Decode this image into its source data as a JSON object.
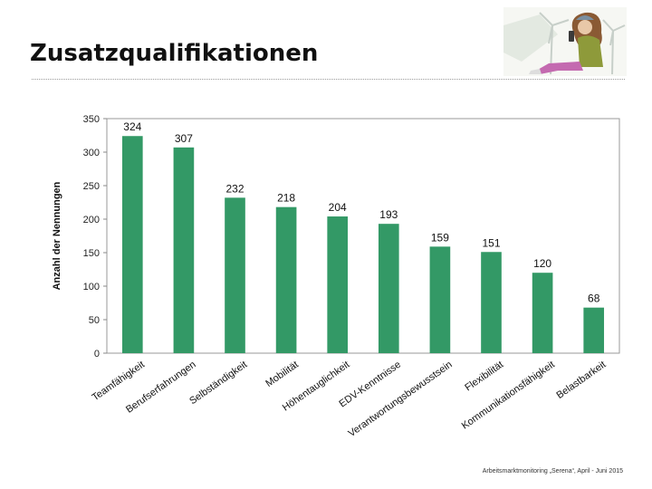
{
  "slide": {
    "title": "Zusatzqualifikationen",
    "footer": "Arbeitsmarktmonitoring „Serena“, April - Juni 2015",
    "illustration_icon": "person-with-phone-and-wind-turbines"
  },
  "chart_data": {
    "type": "bar",
    "title": "",
    "xlabel": "",
    "ylabel": "Anzahl der Nennungen",
    "ylim": [
      0,
      350
    ],
    "yticks": [
      0,
      50,
      100,
      150,
      200,
      250,
      300,
      350
    ],
    "grid": false,
    "bar_color": "#339966",
    "categories": [
      "Teamfähigkeit",
      "Berufserfahrungen",
      "Selbständigkeit",
      "Mobilität",
      "Höhentauglichkeit",
      "EDV-Kenntnisse",
      "Verantwortungsbewusstsein",
      "Flexibilität",
      "Kommunikationsfähigkeit",
      "Belastbarkeit"
    ],
    "values": [
      324,
      307,
      232,
      218,
      204,
      193,
      159,
      151,
      120,
      68
    ]
  }
}
